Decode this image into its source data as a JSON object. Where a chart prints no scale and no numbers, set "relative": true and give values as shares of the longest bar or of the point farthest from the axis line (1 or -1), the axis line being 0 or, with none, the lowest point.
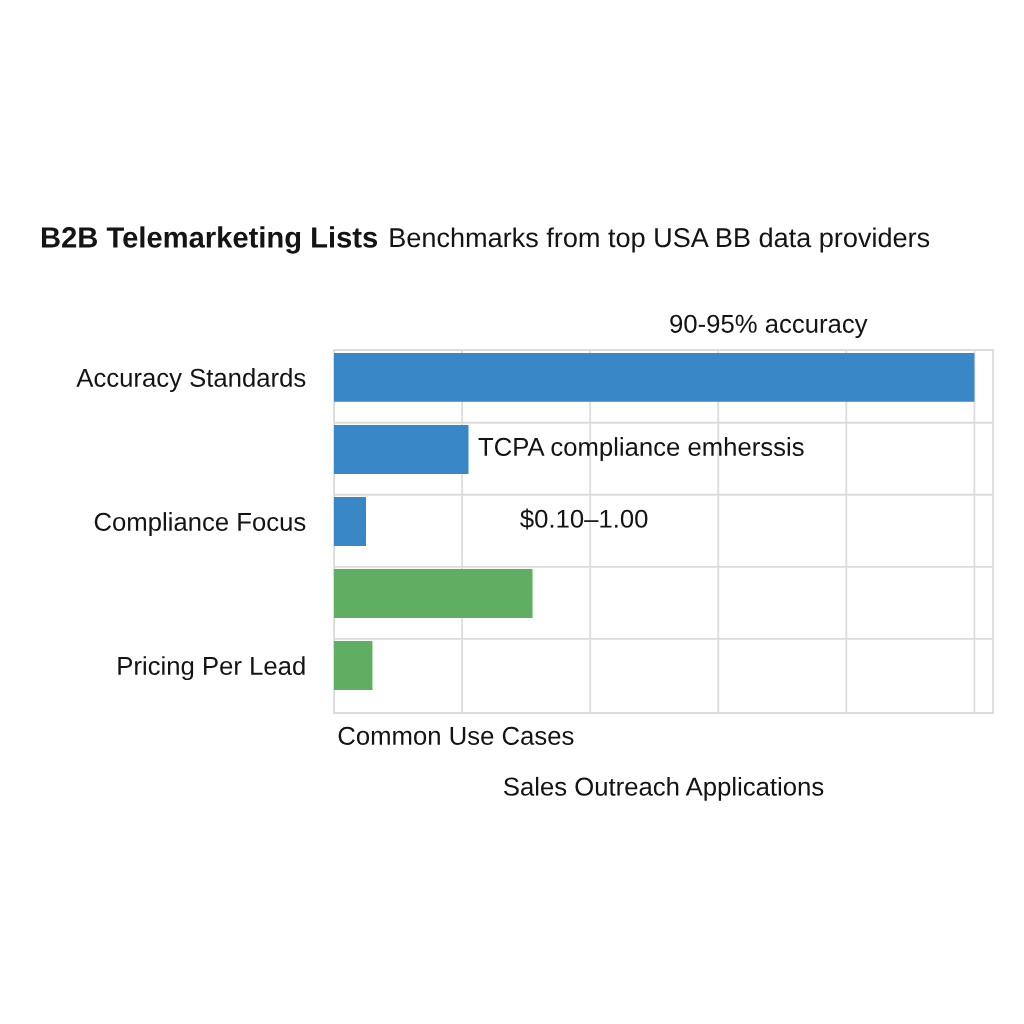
{
  "chart_data": {
    "type": "bar",
    "orientation": "horizontal",
    "relative": true,
    "title": "B2B Telemarketing Lists",
    "subtitle": "Benchmarks from top USA BB data providers",
    "xlabel": "Sales Outreach Applications",
    "categories": [
      "Accuracy Standards",
      null,
      "Compliance Focus",
      null,
      "Pricing Per Lead"
    ],
    "values": [
      1,
      0.21,
      0.05,
      0.31,
      0.06
    ],
    "colors": [
      "#3a87c7",
      "#3a87c7",
      "#3a87c7",
      "#5fae62",
      "#5fae62"
    ],
    "annotations": [
      "90-95% accuracy",
      "TCPA compliance emherssis",
      "$0.10–1.00",
      "Common Use Cases"
    ],
    "grid": true
  }
}
